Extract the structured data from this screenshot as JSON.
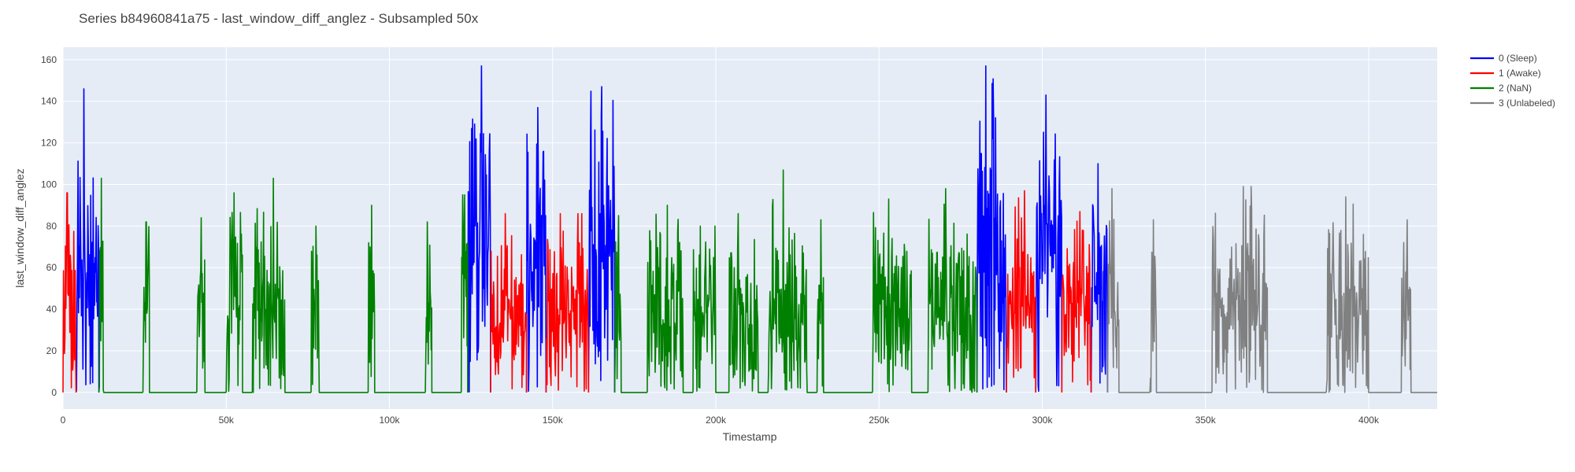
{
  "chart_data": {
    "type": "line",
    "title": "Series b84960841a75 - last_window_diff_anglez - Subsampled 50x",
    "xlabel": "Timestamp",
    "ylabel": "last_window_diff_anglez",
    "xlim": [
      0,
      421000
    ],
    "ylim": [
      -8,
      166
    ],
    "x_ticks": [
      0,
      50000,
      100000,
      150000,
      200000,
      250000,
      300000,
      350000,
      400000
    ],
    "x_tick_labels": [
      "0",
      "50k",
      "100k",
      "150k",
      "200k",
      "250k",
      "300k",
      "350k",
      "400k"
    ],
    "y_ticks": [
      0,
      20,
      40,
      60,
      80,
      100,
      120,
      140,
      160
    ],
    "y_tick_labels": [
      "0",
      "20",
      "40",
      "60",
      "80",
      "100",
      "120",
      "140",
      "160"
    ],
    "grid": true,
    "legend_position": "top-right",
    "background": "#e5ecf6",
    "series_order": [
      0,
      1,
      2,
      3
    ],
    "series": [
      {
        "name": "0 (Sleep)",
        "color": "#0000ff",
        "segments": [
          {
            "start": 4000,
            "end": 11000,
            "peak": 146,
            "level": 40
          },
          {
            "start": 124000,
            "end": 131000,
            "peak": 157,
            "level": 55
          },
          {
            "start": 142000,
            "end": 148000,
            "peak": 137,
            "level": 55
          },
          {
            "start": 161000,
            "end": 169000,
            "peak": 147,
            "level": 55
          },
          {
            "start": 280000,
            "end": 289000,
            "peak": 157,
            "level": 55
          },
          {
            "start": 298000,
            "end": 306000,
            "peak": 143,
            "level": 55
          },
          {
            "start": 315000,
            "end": 320000,
            "peak": 110,
            "level": 45
          }
        ]
      },
      {
        "name": "1 (Awake)",
        "color": "#ff0000",
        "segments": [
          {
            "start": 0,
            "end": 4000,
            "peak": 96,
            "level": 30
          },
          {
            "start": 131000,
            "end": 142000,
            "peak": 86,
            "level": 30
          },
          {
            "start": 148000,
            "end": 161000,
            "peak": 86,
            "level": 30
          },
          {
            "start": 289000,
            "end": 298000,
            "peak": 97,
            "level": 35
          },
          {
            "start": 306000,
            "end": 315000,
            "peak": 87,
            "level": 35
          }
        ]
      },
      {
        "name": "2 (NaN)",
        "color": "#008000",
        "segments": [
          {
            "start": 11000,
            "end": 12500,
            "peak": 103,
            "level": 45
          },
          {
            "start": 24500,
            "end": 26500,
            "peak": 82,
            "level": 35
          },
          {
            "start": 41000,
            "end": 43500,
            "peak": 84,
            "level": 35
          },
          {
            "start": 50000,
            "end": 55000,
            "peak": 96,
            "level": 35
          },
          {
            "start": 58000,
            "end": 68000,
            "peak": 103,
            "level": 30
          },
          {
            "start": 76000,
            "end": 78500,
            "peak": 80,
            "level": 35
          },
          {
            "start": 93500,
            "end": 95500,
            "peak": 90,
            "level": 35
          },
          {
            "start": 111000,
            "end": 113000,
            "peak": 82,
            "level": 35
          },
          {
            "start": 122000,
            "end": 124000,
            "peak": 95,
            "level": 35
          },
          {
            "start": 169000,
            "end": 171000,
            "peak": 85,
            "level": 35
          },
          {
            "start": 179000,
            "end": 190000,
            "peak": 90,
            "level": 30
          },
          {
            "start": 193000,
            "end": 200000,
            "peak": 80,
            "level": 30
          },
          {
            "start": 204000,
            "end": 213000,
            "peak": 86,
            "level": 30
          },
          {
            "start": 216000,
            "end": 228000,
            "peak": 107,
            "level": 30
          },
          {
            "start": 231000,
            "end": 233000,
            "peak": 83,
            "level": 35
          },
          {
            "start": 248000,
            "end": 260000,
            "peak": 93,
            "level": 35
          },
          {
            "start": 265000,
            "end": 280000,
            "peak": 98,
            "level": 30
          }
        ]
      },
      {
        "name": "3 (Unlabeled)",
        "color": "#808080",
        "segments": [
          {
            "start": 320000,
            "end": 323500,
            "peak": 98,
            "level": 35
          },
          {
            "start": 333000,
            "end": 335000,
            "peak": 83,
            "level": 35
          },
          {
            "start": 352000,
            "end": 369000,
            "peak": 99,
            "level": 30
          },
          {
            "start": 387000,
            "end": 400000,
            "peak": 94,
            "level": 30
          },
          {
            "start": 410000,
            "end": 413000,
            "peak": 83,
            "level": 35
          }
        ]
      }
    ]
  }
}
